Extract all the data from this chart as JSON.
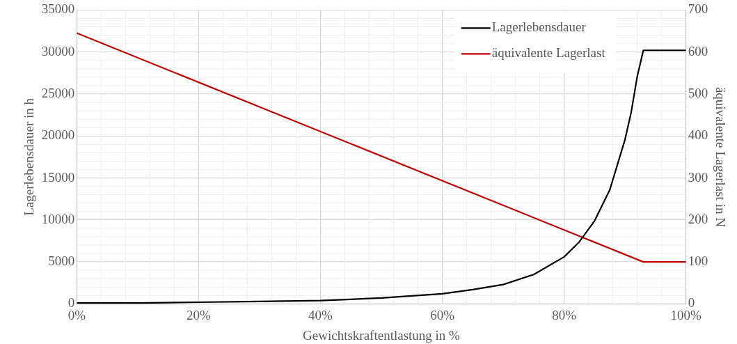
{
  "chart_data": {
    "type": "line",
    "xlabel": "Gewichtskraftentlastung in %",
    "ylabel": "Lagerlebensdauer in h",
    "y2label": "äquivalente Lagerlast in N",
    "xlim": [
      0,
      100
    ],
    "xticks": [
      {
        "value": 0,
        "label": "0%"
      },
      {
        "value": 20,
        "label": "20%"
      },
      {
        "value": 40,
        "label": "40%"
      },
      {
        "value": 60,
        "label": "60%"
      },
      {
        "value": 80,
        "label": "80%"
      },
      {
        "value": 100,
        "label": "100%"
      }
    ],
    "ylim": [
      0,
      35000
    ],
    "yticks": [
      0,
      5000,
      10000,
      15000,
      20000,
      25000,
      30000,
      35000
    ],
    "y2lim": [
      0,
      700
    ],
    "y2ticks": [
      0,
      100,
      200,
      300,
      400,
      500,
      600,
      700
    ],
    "grid": true,
    "legend": "top right",
    "marker": "none",
    "line_style": "solid",
    "series": [
      {
        "name": "Lagerlebensdauer",
        "color": "#000000",
        "x": [
          0,
          10,
          20,
          30,
          40,
          50,
          60,
          65,
          70,
          75,
          80,
          82.5,
          85,
          87.5,
          90,
          91,
          92,
          93,
          100
        ],
        "values": [
          100,
          100,
          200,
          300,
          400,
          700,
          1200,
          1700,
          2300,
          3500,
          5600,
          7400,
          9900,
          13600,
          19600,
          22800,
          27100,
          30200,
          30200
        ]
      },
      {
        "name": "äquivalente Lagerlast",
        "color": "#c00000",
        "axis": "y2",
        "x": [
          0,
          93,
          100
        ],
        "values": [
          645,
          100,
          100
        ]
      }
    ]
  }
}
